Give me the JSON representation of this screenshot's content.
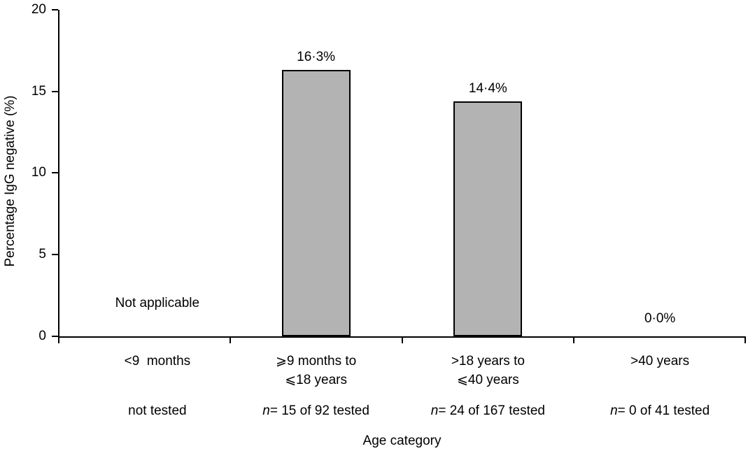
{
  "chart_data": {
    "type": "bar",
    "title": "",
    "xlabel": "Age category",
    "ylabel": "Percentage IgG negative (%)",
    "ylim": [
      0,
      20
    ],
    "yticks": [
      "0",
      "5",
      "10",
      "15",
      "20"
    ],
    "grid": false,
    "legend": false,
    "bar_color": "#b3b3b3",
    "bar_border_color": "#000000",
    "categories": [
      {
        "label_lines": [
          "<9  months",
          ""
        ],
        "n_prefix": "",
        "n_text": "not tested",
        "value": null,
        "annotation": "Not applicable"
      },
      {
        "label_lines": [
          "⩾9 months to",
          "⩽18 years"
        ],
        "n_prefix": "n",
        "n_text": "= 15 of 92 tested",
        "value": 16.3,
        "annotation": "16·3%"
      },
      {
        "label_lines": [
          ">18 years to",
          "⩽40 years"
        ],
        "n_prefix": "n",
        "n_text": "= 24 of 167 tested",
        "value": 14.4,
        "annotation": "14·4%"
      },
      {
        "label_lines": [
          ">40 years",
          ""
        ],
        "n_prefix": "n",
        "n_text": "= 0 of 41 tested",
        "value": 0.0,
        "annotation": "0·0%"
      }
    ]
  }
}
